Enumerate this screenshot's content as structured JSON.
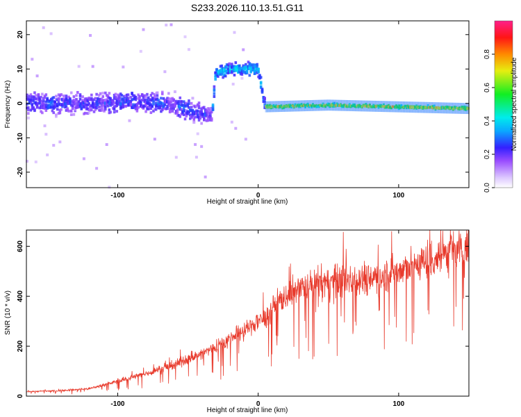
{
  "figure": {
    "title": "S233.2026.110.13.51.G11",
    "background": "#ffffff"
  },
  "chart_data": [
    {
      "type": "heatmap",
      "title": "S233.2026.110.13.51.G11",
      "xlabel": "Height of straight line (km)",
      "ylabel": "Frequency (Hz)",
      "xlim": [
        -165,
        150
      ],
      "ylim": [
        -24.5,
        24
      ],
      "xticks": [
        -100,
        0,
        100
      ],
      "yticks": [
        -20,
        -10,
        0,
        10,
        20
      ],
      "colorbar": {
        "label": "Normalized spectral amplitude",
        "range": [
          0,
          1
        ],
        "ticks": [
          "0.0",
          "0.2",
          "0.4",
          "0.6",
          "0.8"
        ],
        "colormap": "rainbow: white-lavender, violet, blue, cyan, green, yellow, orange, red, magenta"
      },
      "ridge": [
        {
          "x": -160,
          "y": 0
        },
        {
          "x": -120,
          "y": 0
        },
        {
          "x": -80,
          "y": 0.5
        },
        {
          "x": -55,
          "y": -1
        },
        {
          "x": -40,
          "y": -3
        },
        {
          "x": -33,
          "y": -4
        },
        {
          "x": -30,
          "y": 9
        },
        {
          "x": -20,
          "y": 10
        },
        {
          "x": 0,
          "y": 10
        },
        {
          "x": 5,
          "y": -1
        },
        {
          "x": 50,
          "y": -0.5
        },
        {
          "x": 100,
          "y": -1
        },
        {
          "x": 150,
          "y": -1.5
        }
      ],
      "grid": false
    },
    {
      "type": "line",
      "title": "",
      "xlabel": "Height of straight line (km)",
      "ylabel": "SNR (10 * v/v)",
      "xlim": [
        -165,
        150
      ],
      "ylim": [
        0,
        665
      ],
      "xticks": [
        -100,
        0,
        100
      ],
      "yticks": [
        0,
        200,
        400,
        600
      ],
      "color": "#e83a2c",
      "series_trend": [
        {
          "x": -165,
          "y": 18
        },
        {
          "x": -140,
          "y": 22
        },
        {
          "x": -120,
          "y": 30
        },
        {
          "x": -100,
          "y": 60
        },
        {
          "x": -80,
          "y": 90
        },
        {
          "x": -60,
          "y": 125
        },
        {
          "x": -40,
          "y": 170
        },
        {
          "x": -20,
          "y": 230
        },
        {
          "x": -5,
          "y": 280
        },
        {
          "x": 5,
          "y": 320
        },
        {
          "x": 15,
          "y": 380
        },
        {
          "x": 25,
          "y": 420
        },
        {
          "x": 40,
          "y": 445
        },
        {
          "x": 60,
          "y": 465
        },
        {
          "x": 80,
          "y": 475
        },
        {
          "x": 100,
          "y": 500
        },
        {
          "x": 120,
          "y": 545
        },
        {
          "x": 140,
          "y": 580
        },
        {
          "x": 150,
          "y": 600
        }
      ],
      "grid": false
    }
  ]
}
